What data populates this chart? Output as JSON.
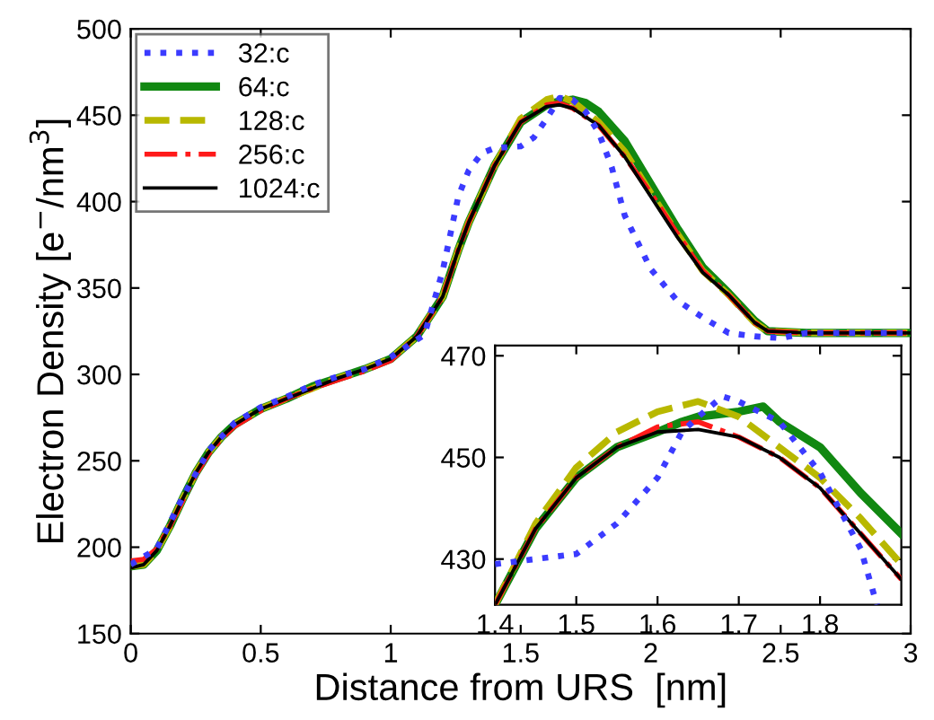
{
  "chart_data": [
    {
      "type": "line",
      "xlabel": "Distance from URS  [nm]",
      "ylabel": "Electron Density [e$^{−}$/nm$^{3}$]",
      "xlim": [
        0,
        3
      ],
      "ylim": [
        150,
        500
      ],
      "xticks": [
        0,
        0.5,
        1,
        1.5,
        2,
        2.5,
        3
      ],
      "yticks": [
        150,
        200,
        250,
        300,
        350,
        400,
        450,
        500
      ],
      "grid": false,
      "legend": "top left",
      "marker": "none",
      "series": [
        {
          "name": "32:c",
          "color": "#3b3bff",
          "line_style": "dotted",
          "x": [
            0,
            0.1,
            0.2,
            0.3,
            0.4,
            0.5,
            0.6,
            0.7,
            0.8,
            0.9,
            1.0,
            1.13,
            1.2,
            1.26,
            1.3,
            1.35,
            1.4,
            1.5,
            1.55,
            1.6,
            1.65,
            1.7,
            1.75,
            1.8,
            1.85,
            1.9,
            2.0,
            2.1,
            2.2,
            2.3,
            2.4,
            2.5,
            2.6,
            3.0
          ],
          "values": [
            190,
            199,
            229,
            256,
            272,
            281,
            287,
            294,
            299,
            303,
            310,
            323,
            360,
            403,
            418,
            428,
            431,
            432,
            437,
            448,
            460,
            459,
            452,
            440,
            420,
            392,
            361,
            343,
            333,
            324,
            322,
            321,
            324,
            324
          ]
        },
        {
          "name": "64:c",
          "color": "#118811",
          "line_style": "solid",
          "x": [
            0,
            0.05,
            0.1,
            0.15,
            0.2,
            0.25,
            0.3,
            0.35,
            0.4,
            0.5,
            0.6,
            0.7,
            0.8,
            0.9,
            1.0,
            1.1,
            1.2,
            1.26,
            1.3,
            1.4,
            1.5,
            1.6,
            1.65,
            1.7,
            1.75,
            1.8,
            1.9,
            2.0,
            2.1,
            2.2,
            2.3,
            2.4,
            2.45,
            2.6,
            3.0
          ],
          "values": [
            189,
            190,
            198,
            212,
            228,
            243,
            255,
            264,
            271,
            280,
            286,
            293,
            298,
            303,
            309,
            322,
            345,
            372,
            388,
            421,
            446,
            456,
            458,
            459,
            457,
            452,
            435,
            410,
            385,
            362,
            347,
            331,
            325,
            324,
            324
          ]
        },
        {
          "name": "128:c",
          "color": "#b8b800",
          "line_style": "dashed",
          "x": [
            0,
            0.05,
            0.1,
            0.15,
            0.2,
            0.25,
            0.3,
            0.35,
            0.4,
            0.5,
            0.6,
            0.7,
            0.8,
            0.9,
            1.0,
            1.1,
            1.2,
            1.26,
            1.3,
            1.4,
            1.5,
            1.6,
            1.65,
            1.7,
            1.75,
            1.8,
            1.9,
            2.0,
            2.1,
            2.2,
            2.3,
            2.4,
            2.45,
            2.6,
            3.0
          ],
          "values": [
            189,
            190,
            198,
            212,
            228,
            243,
            255,
            264,
            271,
            280,
            286,
            292,
            298,
            303,
            309,
            322,
            345,
            372,
            388,
            421,
            448,
            459,
            461,
            458,
            452,
            446,
            429,
            405,
            382,
            360,
            346,
            330,
            325,
            324,
            324
          ]
        },
        {
          "name": "256:c",
          "color": "#ff1a1a",
          "line_style": "dashdot",
          "x": [
            0,
            0.05,
            0.1,
            0.15,
            0.2,
            0.25,
            0.3,
            0.35,
            0.4,
            0.5,
            0.6,
            0.7,
            0.8,
            0.9,
            1.0,
            1.1,
            1.2,
            1.26,
            1.3,
            1.4,
            1.5,
            1.6,
            1.65,
            1.7,
            1.8,
            1.9,
            2.0,
            2.1,
            2.2,
            2.3,
            2.4,
            2.45,
            2.6,
            3.0
          ],
          "values": [
            192,
            193,
            199,
            212,
            227,
            242,
            254,
            263,
            270,
            279,
            286,
            292,
            297,
            302,
            308,
            322,
            345,
            372,
            388,
            421,
            446,
            456,
            457,
            454,
            444,
            426,
            405,
            382,
            360,
            346,
            330,
            325,
            324,
            324
          ]
        },
        {
          "name": "1024:c",
          "color": "#000000",
          "line_style": "solid",
          "x": [
            0,
            0.05,
            0.1,
            0.15,
            0.2,
            0.25,
            0.3,
            0.35,
            0.4,
            0.5,
            0.6,
            0.7,
            0.8,
            0.9,
            1.0,
            1.1,
            1.2,
            1.26,
            1.3,
            1.4,
            1.5,
            1.6,
            1.65,
            1.7,
            1.8,
            1.9,
            2.0,
            2.1,
            2.2,
            2.3,
            2.4,
            2.45,
            2.6,
            3.0
          ],
          "values": [
            188,
            190,
            198,
            212,
            228,
            243,
            255,
            264,
            271,
            280,
            286,
            292,
            298,
            303,
            309,
            322,
            345,
            372,
            388,
            421,
            446,
            455,
            456,
            454,
            444,
            426,
            403,
            380,
            359,
            346,
            330,
            325,
            324,
            324
          ]
        }
      ]
    },
    {
      "type": "line",
      "xlim": [
        1.4,
        1.9
      ],
      "ylim": [
        421,
        472
      ],
      "xticks": [
        1.4,
        1.5,
        1.6,
        1.7,
        1.8
      ],
      "yticks": [
        430,
        450,
        470
      ],
      "grid": false,
      "marker": "none",
      "series": [
        {
          "color": "#3b3bff",
          "line_style": "dotted",
          "x": [
            1.4,
            1.45,
            1.5,
            1.55,
            1.6,
            1.63,
            1.65,
            1.68,
            1.7,
            1.75,
            1.8,
            1.85,
            1.87
          ],
          "values": [
            429,
            430,
            431,
            437,
            446,
            455,
            458,
            462,
            461,
            457,
            447,
            432,
            421
          ]
        },
        {
          "color": "#118811",
          "line_style": "solid",
          "x": [
            1.4,
            1.45,
            1.5,
            1.55,
            1.6,
            1.63,
            1.65,
            1.7,
            1.73,
            1.75,
            1.8,
            1.85,
            1.9
          ],
          "values": [
            421,
            436,
            446,
            452,
            455,
            457,
            458,
            459,
            460,
            457,
            452,
            443,
            435
          ]
        },
        {
          "color": "#b8b800",
          "line_style": "dashed",
          "x": [
            1.4,
            1.45,
            1.5,
            1.55,
            1.6,
            1.65,
            1.7,
            1.75,
            1.8,
            1.85,
            1.9
          ],
          "values": [
            421,
            437,
            448,
            455,
            459,
            461,
            458,
            452,
            446,
            438,
            429
          ]
        },
        {
          "color": "#ff1a1a",
          "line_style": "dashdot",
          "x": [
            1.4,
            1.45,
            1.5,
            1.55,
            1.6,
            1.65,
            1.7,
            1.75,
            1.8,
            1.85,
            1.9
          ],
          "values": [
            421,
            436,
            446,
            452,
            456,
            457,
            454,
            450,
            444,
            435,
            426
          ]
        },
        {
          "color": "#000000",
          "line_style": "solid",
          "x": [
            1.4,
            1.45,
            1.5,
            1.55,
            1.6,
            1.65,
            1.7,
            1.75,
            1.8,
            1.85,
            1.9
          ],
          "values": [
            421,
            436,
            446,
            452,
            455,
            455.5,
            454,
            450,
            444,
            435,
            426
          ]
        }
      ]
    }
  ]
}
